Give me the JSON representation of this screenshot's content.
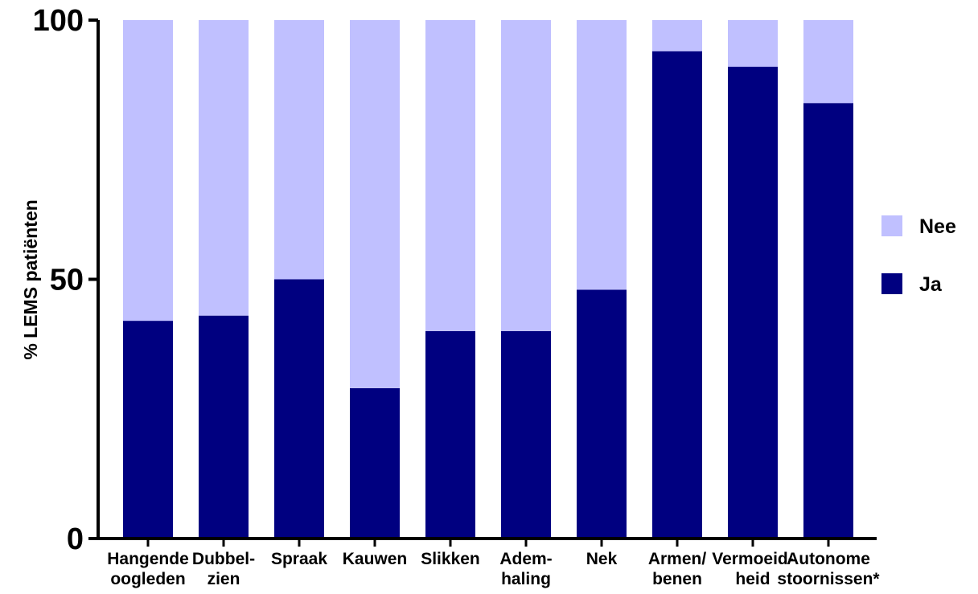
{
  "chart_data": {
    "type": "bar",
    "stacked": true,
    "title": "",
    "ylabel": "% LEMS patiënten",
    "xlabel": "",
    "ylim": [
      0,
      100
    ],
    "yticks": [
      "0",
      "50",
      "100"
    ],
    "categories": [
      [
        "Hangende",
        "oogleden"
      ],
      [
        "Dubbel-",
        "zien"
      ],
      [
        "Spraak"
      ],
      [
        "Kauwen"
      ],
      [
        "Slikken"
      ],
      [
        "Adem-",
        "haling"
      ],
      [
        "Nek"
      ],
      [
        "Armen/",
        "benen"
      ],
      [
        "Vermoeid-",
        "heid"
      ],
      [
        "Autonome",
        "stoornissen*"
      ]
    ],
    "series": [
      {
        "name": "Ja",
        "color": "#000080",
        "values": [
          42,
          43,
          50,
          29,
          40,
          40,
          48,
          94,
          91,
          84
        ]
      },
      {
        "name": "Nee",
        "color": "#c0c0ff",
        "values": [
          58,
          57,
          50,
          71,
          60,
          60,
          52,
          6,
          9,
          16
        ]
      }
    ],
    "legend": {
      "position": "right",
      "order": [
        "Nee",
        "Ja"
      ]
    },
    "grid": false
  }
}
